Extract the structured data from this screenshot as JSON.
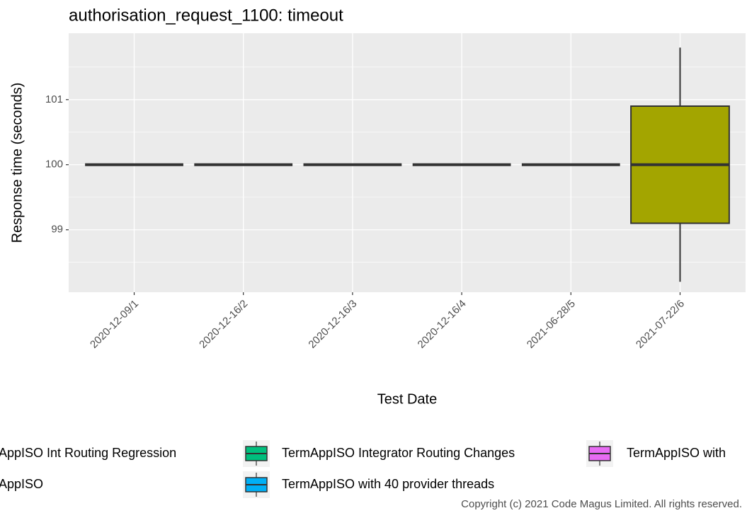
{
  "chart_data": {
    "type": "boxplot",
    "title": "authorisation_request_1100: timeout",
    "x_label": "Test Date",
    "y_label": "Response time (seconds)",
    "categories": [
      "2020-12-09/1",
      "2020-12-16/2",
      "2020-12-16/3",
      "2020-12-16/4",
      "2021-06-28/5",
      "2021-07-22/6"
    ],
    "series": [
      {
        "name": "TermAppISO Int Routing Regression",
        "color": "#F8766D",
        "values": [
          {
            "min": 100,
            "q1": 100,
            "median": 100,
            "q3": 100,
            "max": 100
          },
          null,
          null,
          null,
          null,
          null
        ]
      },
      {
        "name": "TermAppISO",
        "color": "#A3A500",
        "values": [
          null,
          null,
          null,
          null,
          null,
          {
            "min": 98.2,
            "q1": 99.1,
            "median": 100,
            "q3": 100.9,
            "max": 101.8
          }
        ]
      },
      {
        "name": "TermAppISO Integrator Routing Changes",
        "color": "#00BF7D",
        "values": [
          null,
          {
            "min": 100,
            "q1": 100,
            "median": 100,
            "q3": 100,
            "max": 100
          },
          {
            "min": 100,
            "q1": 100,
            "median": 100,
            "q3": 100,
            "max": 100
          },
          {
            "min": 100,
            "q1": 100,
            "median": 100,
            "q3": 100,
            "max": 100
          },
          null,
          null
        ]
      },
      {
        "name": "TermAppISO with 40 provider threads",
        "color": "#00B0F6",
        "values": [
          null,
          null,
          null,
          null,
          {
            "min": 100,
            "q1": 100,
            "median": 100,
            "q3": 100,
            "max": 100
          },
          null
        ]
      },
      {
        "name": "TermAppISO with",
        "color": "#E76BF3",
        "values": [
          null,
          null,
          null,
          null,
          null,
          null
        ]
      }
    ],
    "ylim": [
      98.04,
      102.02
    ],
    "yticks": [
      99,
      100,
      101
    ],
    "y_minor_ticks": [
      98.5,
      99.5,
      100.5,
      101.5
    ],
    "grid": true,
    "legend": "bottom",
    "copyright": "Copyright (c) 2021 Code Magus Limited. All rights reserved."
  }
}
